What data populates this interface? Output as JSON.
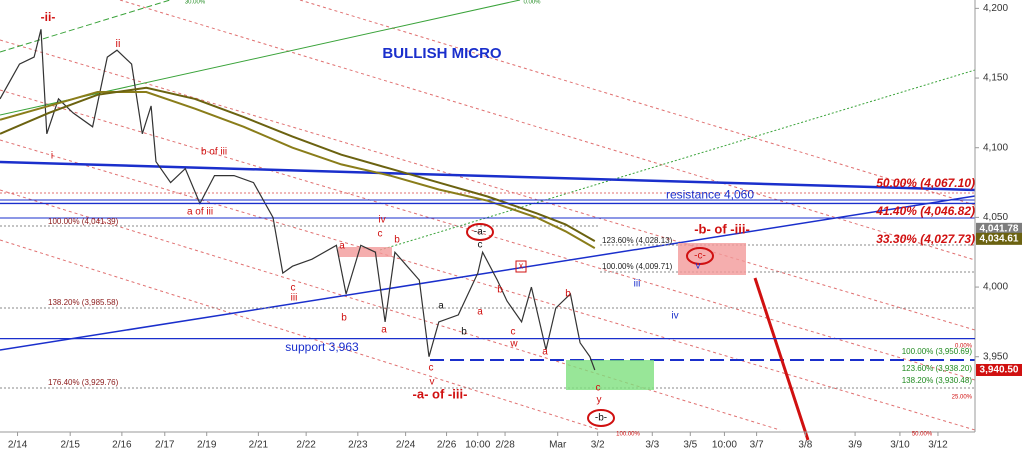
{
  "chart_data": {
    "type": "line",
    "title": "BULLISH MICRO",
    "xlim": [
      0,
      100
    ],
    "ylim": [
      3896,
      4206
    ],
    "xticks": [
      {
        "value": 1.8,
        "label": "2/14"
      },
      {
        "value": 7.2,
        "label": "2/15"
      },
      {
        "value": 12.5,
        "label": "2/16"
      },
      {
        "value": 16.9,
        "label": "2/17"
      },
      {
        "value": 21.2,
        "label": "2/19"
      },
      {
        "value": 26.5,
        "label": "2/21"
      },
      {
        "value": 31.4,
        "label": "2/22"
      },
      {
        "value": 36.7,
        "label": "2/23"
      },
      {
        "value": 41.6,
        "label": "2/24"
      },
      {
        "value": 45.8,
        "label": "2/26"
      },
      {
        "value": 49.0,
        "label": "10:00"
      },
      {
        "value": 51.8,
        "label": "2/28"
      },
      {
        "value": 57.2,
        "label": "Mar"
      },
      {
        "value": 61.3,
        "label": "3/2"
      },
      {
        "value": 66.9,
        "label": "3/3"
      },
      {
        "value": 70.8,
        "label": "3/5"
      },
      {
        "value": 74.3,
        "label": "10:00"
      },
      {
        "value": 77.6,
        "label": "3/7"
      },
      {
        "value": 82.6,
        "label": "3/8"
      },
      {
        "value": 87.7,
        "label": "3/9"
      },
      {
        "value": 92.3,
        "label": "3/10"
      },
      {
        "value": 96.2,
        "label": "3/12"
      }
    ],
    "yticks": [
      {
        "value": 3950,
        "label": "3,950"
      },
      {
        "value": 4000,
        "label": "4,000"
      },
      {
        "value": 4050,
        "label": "4,050"
      },
      {
        "value": 4100,
        "label": "4,100"
      },
      {
        "value": 4150,
        "label": "4,150"
      },
      {
        "value": 4200,
        "label": "4,200"
      }
    ],
    "series": [
      {
        "color": "#333333",
        "x": [
          0,
          2,
          3.5,
          4.2,
          4.8,
          6,
          7.5,
          9.5,
          11,
          12,
          13.5,
          14.6,
          15.5,
          16,
          17.5,
          19,
          20.5,
          22,
          24,
          26,
          28,
          29,
          30,
          32,
          34.5,
          35.5,
          37,
          38.5,
          39.5,
          40.5,
          43,
          44,
          45,
          47,
          49,
          49.5,
          51,
          52,
          53.5,
          54.5,
          55,
          56,
          57,
          58.5,
          59.5,
          60.5,
          61
        ],
        "values": [
          4135,
          4160,
          4165,
          4185,
          4110,
          4135,
          4125,
          4115,
          4165,
          4170,
          4160,
          4110,
          4130,
          4090,
          4075,
          4085,
          4060,
          4080,
          4080,
          4075,
          4050,
          4010,
          4015,
          4020,
          4030,
          3995,
          4030,
          4025,
          3975,
          4025,
          4005,
          3950,
          3975,
          3980,
          4010,
          4025,
          4005,
          3990,
          3975,
          4000,
          3985,
          3955,
          3985,
          3995,
          3960,
          3950,
          3940.5
        ]
      },
      {
        "color": "#8a7d1a",
        "x": [
          0,
          5,
          10,
          15,
          20,
          25,
          30,
          35,
          40,
          45,
          50,
          55,
          58,
          61
        ],
        "values": [
          4120,
          4130,
          4140,
          4140,
          4128,
          4115,
          4100,
          4088,
          4080,
          4070,
          4062,
          4050,
          4040,
          4028
        ]
      },
      {
        "color": "#6b6210",
        "x": [
          0,
          5,
          10,
          15,
          20,
          25,
          30,
          35,
          40,
          45,
          50,
          55,
          58,
          61
        ],
        "values": [
          4110,
          4125,
          4138,
          4143,
          4135,
          4122,
          4108,
          4095,
          4085,
          4075,
          4065,
          4053,
          4045,
          4033
        ]
      }
    ],
    "levels": [
      {
        "value": 4060,
        "label": "resistance 4,060",
        "color": "#1a2fcc"
      },
      {
        "value": 3963,
        "label": "support 3,963",
        "color": "#1a2fcc"
      }
    ],
    "price_tags": [
      {
        "value": 4041.78,
        "label": "4,041.78",
        "color": "#7d7d7d"
      },
      {
        "value": 4034.61,
        "label": "4,034.61",
        "color": "#6b6210"
      },
      {
        "value": 3940.5,
        "label": "3,940.50",
        "color": "#d01010"
      }
    ],
    "fib_labels": [
      {
        "label": "50.00% (4,067.10)",
        "color": "#d01010"
      },
      {
        "label": "41.40% (4,046.82)",
        "color": "#d01010"
      },
      {
        "label": "33.30% (4,027.73)",
        "color": "#d01010"
      },
      {
        "label": "100.00% (4,041.39)",
        "color": "#8b1a1a"
      },
      {
        "label": "123.60% (4,028.13)",
        "color": "#222222"
      },
      {
        "label": "100.00% (4,009.71)",
        "color": "#222222"
      },
      {
        "label": "138.20% (3,985.58)",
        "color": "#8b1a1a"
      },
      {
        "label": "176.40% (3,929.76)",
        "color": "#8b1a1a"
      },
      {
        "label": "100.00% (3,950.69)",
        "color": "#1f8a1f"
      },
      {
        "label": "123.60% (3,938.20)",
        "color": "#1f8a1f"
      },
      {
        "label": "138.20% (3,930.48)",
        "color": "#1f8a1f"
      },
      {
        "label": "0.00%",
        "color": "#d01010"
      },
      {
        "label": "25.00%",
        "color": "#d01010"
      },
      {
        "label": "100.00%",
        "color": "#d01010"
      },
      {
        "label": "50.00%",
        "color": "#d01010"
      },
      {
        "label": "30.00%",
        "color": "#1f8a1f"
      },
      {
        "label": "0.00%",
        "color": "#1f8a1f"
      }
    ],
    "annotations": [
      {
        "text": "-ii-",
        "color": "#d01010"
      },
      {
        "text": "ii",
        "color": "#d01010"
      },
      {
        "text": "i",
        "color": "#d01010"
      },
      {
        "text": "b of iii",
        "color": "#d01010"
      },
      {
        "text": "a of iii",
        "color": "#d01010"
      },
      {
        "text": "iv",
        "color": "#d01010"
      },
      {
        "text": "c",
        "color": "#d01010"
      },
      {
        "text": "b",
        "color": "#d01010"
      },
      {
        "text": "a",
        "color": "#d01010"
      },
      {
        "text": "iii",
        "color": "#d01010"
      },
      {
        "text": "c",
        "color": "#d01010"
      },
      {
        "text": "b",
        "color": "#d01010"
      },
      {
        "text": "a",
        "color": "#d01010"
      },
      {
        "text": "-a-",
        "color": "#111111"
      },
      {
        "text": "c",
        "color": "#111111"
      },
      {
        "text": "-b- of -iii-",
        "color": "#d01010"
      },
      {
        "text": "-c-",
        "color": "#d01010"
      },
      {
        "text": "v",
        "color": "#1a2fcc"
      },
      {
        "text": "iii",
        "color": "#1a2fcc"
      },
      {
        "text": "iv",
        "color": "#1a2fcc"
      },
      {
        "text": "x",
        "color": "#d01010"
      },
      {
        "text": "a",
        "color": "#111111"
      },
      {
        "text": "b",
        "color": "#111111"
      },
      {
        "text": "a",
        "color": "#d01010"
      },
      {
        "text": "b",
        "color": "#d01010"
      },
      {
        "text": "c",
        "color": "#d01010"
      },
      {
        "text": "w",
        "color": "#d01010"
      },
      {
        "text": "a",
        "color": "#d01010"
      },
      {
        "text": "b",
        "color": "#d01010"
      },
      {
        "text": "c",
        "color": "#d01010"
      },
      {
        "text": "v",
        "color": "#d01010"
      },
      {
        "text": "c",
        "color": "#d01010"
      },
      {
        "text": "y",
        "color": "#d01010"
      },
      {
        "text": "-a- of -iii-",
        "color": "#d01010"
      },
      {
        "text": "-b-",
        "color": "#111111"
      }
    ]
  }
}
